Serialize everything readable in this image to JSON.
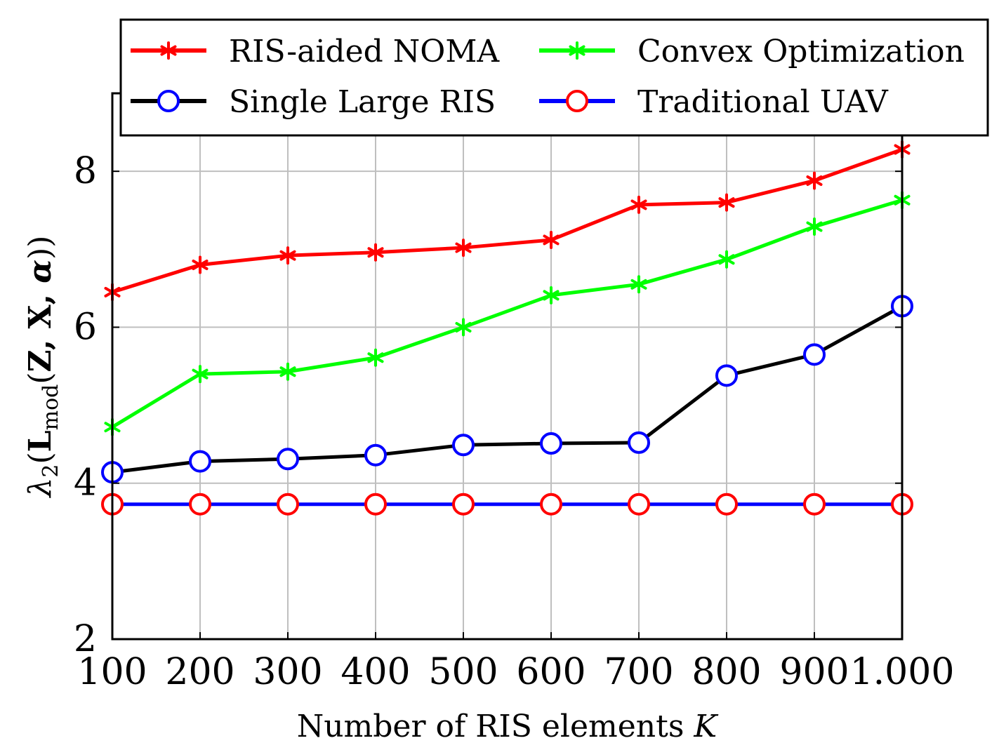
{
  "chart_data": {
    "type": "line",
    "title": "",
    "xlabel": "Number of RIS elements",
    "xlabel_symbol": "K",
    "ylabel": "λ2(Lmod(Z, X, α))",
    "ylabel_parts": {
      "lambda": "λ",
      "lambda_sub": "2",
      "open": "(",
      "L": "L",
      "L_sub": "mod",
      "args_open": "(",
      "args": "Z, X, ",
      "alpha": "α",
      "close": "))"
    },
    "x": [
      100,
      200,
      300,
      400,
      500,
      600,
      700,
      800,
      900,
      1000
    ],
    "x_tick_labels": [
      "100",
      "200",
      "300",
      "400",
      "500",
      "600",
      "700",
      "800",
      "900",
      "1.000"
    ],
    "y_ticks": [
      2,
      4,
      6,
      8
    ],
    "y_tick_labels": [
      "2",
      "4",
      "6",
      "8"
    ],
    "xlim": [
      100,
      1000
    ],
    "ylim": [
      2,
      9
    ],
    "grid": true,
    "legend_position": "top",
    "series": [
      {
        "name": "RIS-aided NOMA",
        "color": "#ff0000",
        "marker": "star",
        "marker_color": "#ff0000",
        "values": [
          6.45,
          6.8,
          6.92,
          6.96,
          7.02,
          7.12,
          7.57,
          7.6,
          7.88,
          8.28
        ]
      },
      {
        "name": "Convex Optimization",
        "color": "#00ff00",
        "marker": "star",
        "marker_color": "#00ff00",
        "values": [
          4.72,
          5.4,
          5.43,
          5.61,
          6.0,
          6.41,
          6.55,
          6.87,
          7.29,
          7.63
        ]
      },
      {
        "name": "Single Large RIS",
        "color": "#000000",
        "marker": "circle",
        "marker_color": "#0000ff",
        "values": [
          4.14,
          4.28,
          4.31,
          4.36,
          4.49,
          4.51,
          4.52,
          5.38,
          5.65,
          6.27
        ]
      },
      {
        "name": "Traditional UAV",
        "color": "#0000ff",
        "marker": "circle",
        "marker_color": "#ff0000",
        "values": [
          3.73,
          3.73,
          3.73,
          3.73,
          3.73,
          3.73,
          3.73,
          3.73,
          3.73,
          3.73
        ]
      }
    ]
  }
}
